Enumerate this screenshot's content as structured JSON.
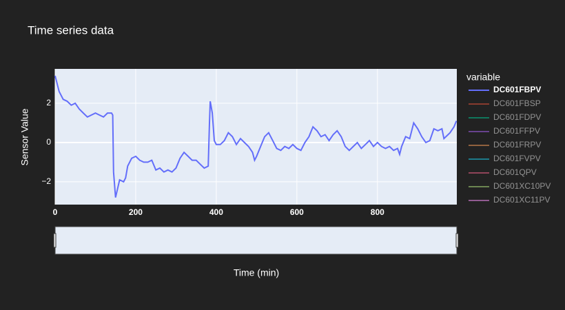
{
  "chart_data": {
    "type": "line",
    "title": "Time series data",
    "x_label": "Time (min)",
    "y_label": "Sensor Value",
    "legend_title": "variable",
    "x": [
      0,
      10,
      20,
      30,
      40,
      50,
      60,
      70,
      80,
      90,
      100,
      110,
      120,
      130,
      140,
      143,
      145,
      150,
      160,
      170,
      175,
      180,
      190,
      200,
      210,
      220,
      230,
      240,
      250,
      260,
      270,
      280,
      290,
      300,
      310,
      320,
      330,
      340,
      350,
      360,
      370,
      380,
      383,
      385,
      390,
      395,
      400,
      410,
      420,
      430,
      440,
      450,
      460,
      470,
      480,
      490,
      495,
      500,
      510,
      520,
      530,
      540,
      550,
      560,
      570,
      580,
      590,
      600,
      610,
      620,
      630,
      640,
      650,
      660,
      670,
      680,
      690,
      700,
      710,
      720,
      730,
      740,
      750,
      760,
      770,
      780,
      790,
      800,
      810,
      820,
      830,
      840,
      850,
      855,
      860,
      870,
      880,
      890,
      900,
      910,
      920,
      930,
      940,
      950,
      960,
      965,
      970,
      980,
      990,
      996
    ],
    "series": [
      {
        "name": "DC601FBPV",
        "color": "#636efa",
        "visible": true,
        "values": [
          3.4,
          2.6,
          2.2,
          2.1,
          1.9,
          2.0,
          1.7,
          1.5,
          1.3,
          1.4,
          1.5,
          1.4,
          1.3,
          1.5,
          1.5,
          1.4,
          -1.5,
          -2.8,
          -1.9,
          -2.0,
          -1.8,
          -1.2,
          -0.8,
          -0.7,
          -0.9,
          -1.0,
          -1.0,
          -0.9,
          -1.4,
          -1.3,
          -1.5,
          -1.4,
          -1.5,
          -1.3,
          -0.8,
          -0.5,
          -0.7,
          -0.9,
          -0.9,
          -1.1,
          -1.3,
          -1.2,
          1.0,
          2.1,
          1.5,
          0.1,
          -0.1,
          -0.1,
          0.1,
          0.5,
          0.3,
          -0.1,
          0.2,
          0.0,
          -0.2,
          -0.5,
          -0.9,
          -0.7,
          -0.2,
          0.3,
          0.5,
          0.1,
          -0.3,
          -0.4,
          -0.2,
          -0.3,
          -0.1,
          -0.3,
          -0.4,
          0.0,
          0.3,
          0.8,
          0.6,
          0.3,
          0.4,
          0.1,
          0.4,
          0.6,
          0.3,
          -0.2,
          -0.4,
          -0.2,
          0.0,
          -0.3,
          -0.1,
          0.1,
          -0.2,
          0.0,
          -0.2,
          -0.3,
          -0.2,
          -0.4,
          -0.3,
          -0.6,
          -0.2,
          0.3,
          0.2,
          1.0,
          0.7,
          0.3,
          0.0,
          0.1,
          0.7,
          0.6,
          0.7,
          0.2,
          0.3,
          0.5,
          0.8,
          1.1
        ]
      },
      {
        "name": "DC601FBSP",
        "color": "#EF553B",
        "visible": false
      },
      {
        "name": "DC601FDPV",
        "color": "#00cc96",
        "visible": false
      },
      {
        "name": "DC601FFPV",
        "color": "#ab63fa",
        "visible": false
      },
      {
        "name": "DC601FRPV",
        "color": "#FFA15A",
        "visible": false
      },
      {
        "name": "DC601FVPV",
        "color": "#19d3f3",
        "visible": false
      },
      {
        "name": "DC601QPV",
        "color": "#FF6692",
        "visible": false
      },
      {
        "name": "DC601XC10PV",
        "color": "#B6E880",
        "visible": false
      },
      {
        "name": "DC601XC11PV",
        "color": "#FF97FF",
        "visible": false
      }
    ],
    "xlim": [
      0,
      997
    ],
    "ylim": [
      -3.16,
      3.75
    ],
    "xticks": [
      0,
      200,
      400,
      600,
      800
    ],
    "yticks": [
      {
        "value": -2,
        "label": "−2"
      },
      0,
      2
    ],
    "grid": true,
    "range_slider": true
  }
}
